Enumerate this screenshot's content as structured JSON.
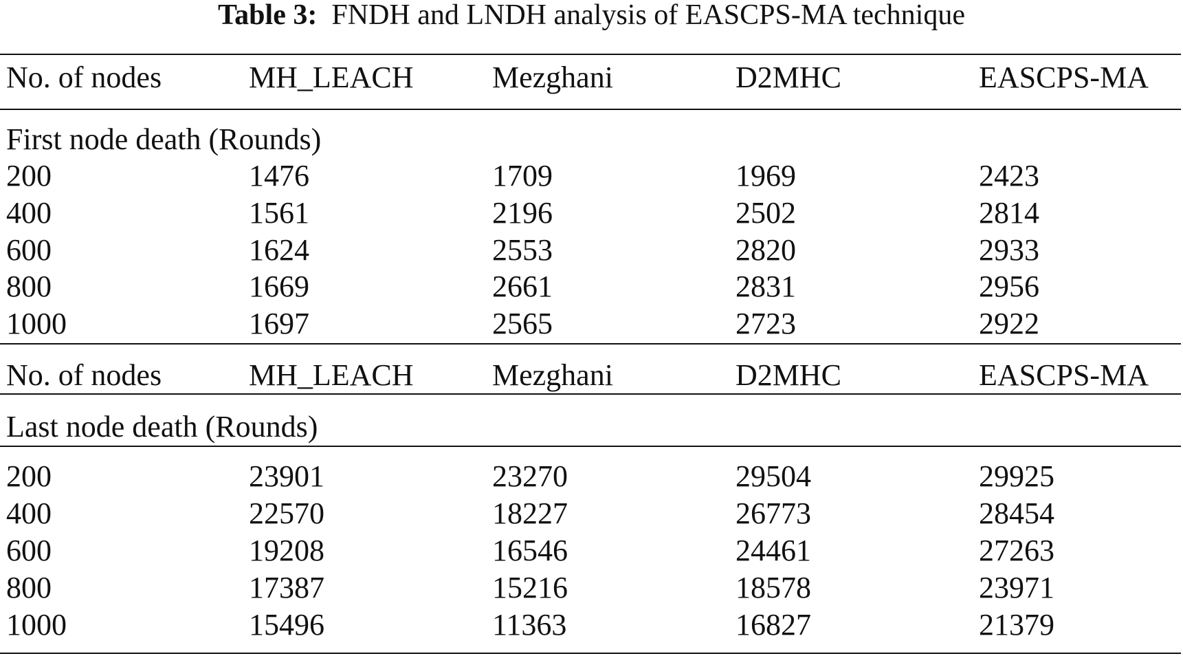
{
  "caption": {
    "label": "Table 3:",
    "text": "FNDH and LNDH analysis of EASCPS-MA technique"
  },
  "sections": [
    {
      "header": [
        "No. of nodes",
        "MH_LEACH",
        "Mezghani",
        "D2MHC",
        "EASCPS-MA"
      ],
      "label": "First node death (Rounds)",
      "rows": [
        [
          200,
          1476,
          1709,
          1969,
          2423
        ],
        [
          400,
          1561,
          2196,
          2502,
          2814
        ],
        [
          600,
          1624,
          2553,
          2820,
          2933
        ],
        [
          800,
          1669,
          2661,
          2831,
          2956
        ],
        [
          1000,
          1697,
          2565,
          2723,
          2922
        ]
      ]
    },
    {
      "header": [
        "No. of nodes",
        "MH_LEACH",
        "Mezghani",
        "D2MHC",
        "EASCPS-MA"
      ],
      "label": "Last node death (Rounds)",
      "rows": [
        [
          200,
          23901,
          23270,
          29504,
          29925
        ],
        [
          400,
          22570,
          18227,
          26773,
          28454
        ],
        [
          600,
          19208,
          16546,
          24461,
          27263
        ],
        [
          800,
          17387,
          15216,
          18578,
          23971
        ],
        [
          1000,
          15496,
          11363,
          16827,
          21379
        ]
      ]
    }
  ]
}
